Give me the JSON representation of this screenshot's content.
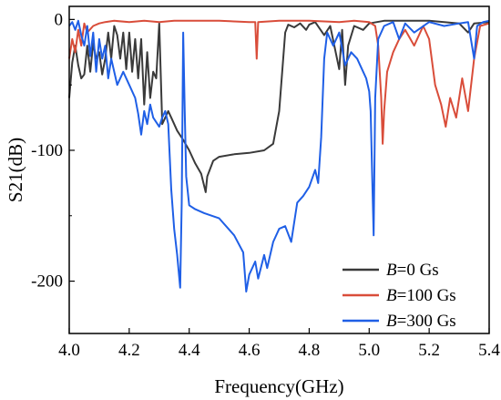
{
  "chart_data": {
    "type": "line",
    "xlabel": "Frequency(GHz)",
    "ylabel": "S21(dB)",
    "xlim": [
      4.0,
      5.4
    ],
    "ylim": [
      -240,
      10
    ],
    "x_ticks": [
      "4.0",
      "4.2",
      "4.4",
      "4.6",
      "4.8",
      "5.0",
      "5.2",
      "5.4"
    ],
    "y_ticks": [
      "0",
      "-100",
      "-200"
    ],
    "legend_position": "bottom-right",
    "series": [
      {
        "name": "B=0 Gs",
        "legend_var": "B",
        "legend_rest": "=0 Gs",
        "color": "#3a3a3a",
        "points": [
          [
            4.0,
            -60
          ],
          [
            4.01,
            -33
          ],
          [
            4.02,
            -20
          ],
          [
            4.03,
            -35
          ],
          [
            4.04,
            -45
          ],
          [
            4.05,
            -42
          ],
          [
            4.06,
            -20
          ],
          [
            4.07,
            -40
          ],
          [
            4.08,
            -18
          ],
          [
            4.09,
            -30
          ],
          [
            4.1,
            -25
          ],
          [
            4.11,
            -42
          ],
          [
            4.12,
            -30
          ],
          [
            4.13,
            -10
          ],
          [
            4.14,
            -30
          ],
          [
            4.15,
            -5
          ],
          [
            4.16,
            -12
          ],
          [
            4.17,
            -30
          ],
          [
            4.18,
            -10
          ],
          [
            4.19,
            -38
          ],
          [
            4.2,
            -10
          ],
          [
            4.21,
            -40
          ],
          [
            4.22,
            -15
          ],
          [
            4.23,
            -45
          ],
          [
            4.24,
            -15
          ],
          [
            4.25,
            -65
          ],
          [
            4.26,
            -25
          ],
          [
            4.27,
            -60
          ],
          [
            4.28,
            -40
          ],
          [
            4.29,
            -45
          ],
          [
            4.3,
            -3
          ],
          [
            4.31,
            -80
          ],
          [
            4.32,
            -75
          ],
          [
            4.33,
            -70
          ],
          [
            4.34,
            -75
          ],
          [
            4.36,
            -85
          ],
          [
            4.38,
            -92
          ],
          [
            4.4,
            -100
          ],
          [
            4.42,
            -110
          ],
          [
            4.44,
            -118
          ],
          [
            4.455,
            -132
          ],
          [
            4.46,
            -120
          ],
          [
            4.48,
            -108
          ],
          [
            4.5,
            -105
          ],
          [
            4.55,
            -103
          ],
          [
            4.6,
            -102
          ],
          [
            4.65,
            -100
          ],
          [
            4.68,
            -95
          ],
          [
            4.7,
            -70
          ],
          [
            4.72,
            -10
          ],
          [
            4.73,
            -4
          ],
          [
            4.75,
            -6
          ],
          [
            4.77,
            -3
          ],
          [
            4.79,
            -8
          ],
          [
            4.8,
            -4
          ],
          [
            4.82,
            -2
          ],
          [
            4.85,
            -12
          ],
          [
            4.87,
            -5
          ],
          [
            4.9,
            -38
          ],
          [
            4.91,
            -8
          ],
          [
            4.92,
            -50
          ],
          [
            4.93,
            -20
          ],
          [
            4.95,
            -5
          ],
          [
            4.98,
            -8
          ],
          [
            5.0,
            -3
          ],
          [
            5.05,
            -1
          ],
          [
            5.1,
            -1
          ],
          [
            5.15,
            -1
          ],
          [
            5.2,
            -1
          ],
          [
            5.25,
            -2
          ],
          [
            5.3,
            -3
          ],
          [
            5.33,
            -10
          ],
          [
            5.35,
            -3
          ],
          [
            5.4,
            -2
          ]
        ]
      },
      {
        "name": "B=100 Gs",
        "legend_var": "B",
        "legend_rest": "=100 Gs",
        "color": "#d94d3a",
        "points": [
          [
            4.0,
            -30
          ],
          [
            4.01,
            -15
          ],
          [
            4.02,
            -25
          ],
          [
            4.03,
            -8
          ],
          [
            4.04,
            -20
          ],
          [
            4.05,
            -3
          ],
          [
            4.06,
            -10
          ],
          [
            4.08,
            -5
          ],
          [
            4.1,
            -3
          ],
          [
            4.12,
            -2
          ],
          [
            4.15,
            -1
          ],
          [
            4.2,
            -2
          ],
          [
            4.25,
            -1
          ],
          [
            4.3,
            -2
          ],
          [
            4.35,
            -1
          ],
          [
            4.4,
            -1
          ],
          [
            4.5,
            -1
          ],
          [
            4.6,
            -2
          ],
          [
            4.62,
            -2
          ],
          [
            4.625,
            -30
          ],
          [
            4.63,
            -2
          ],
          [
            4.7,
            -1
          ],
          [
            4.8,
            -1
          ],
          [
            4.9,
            -2
          ],
          [
            4.95,
            -1
          ],
          [
            5.0,
            -2
          ],
          [
            5.02,
            -5
          ],
          [
            5.03,
            -20
          ],
          [
            5.04,
            -60
          ],
          [
            5.045,
            -95
          ],
          [
            5.05,
            -70
          ],
          [
            5.06,
            -40
          ],
          [
            5.08,
            -25
          ],
          [
            5.1,
            -15
          ],
          [
            5.12,
            -8
          ],
          [
            5.15,
            -20
          ],
          [
            5.18,
            -5
          ],
          [
            5.2,
            -15
          ],
          [
            5.22,
            -50
          ],
          [
            5.24,
            -65
          ],
          [
            5.255,
            -82
          ],
          [
            5.27,
            -60
          ],
          [
            5.29,
            -75
          ],
          [
            5.31,
            -45
          ],
          [
            5.33,
            -70
          ],
          [
            5.35,
            -30
          ],
          [
            5.37,
            -5
          ],
          [
            5.4,
            -3
          ]
        ]
      },
      {
        "name": "B=300 Gs",
        "legend_var": "B",
        "legend_rest": "=300 Gs",
        "color": "#1f5fe6",
        "points": [
          [
            4.0,
            -5
          ],
          [
            4.01,
            -2
          ],
          [
            4.02,
            -8
          ],
          [
            4.03,
            -1
          ],
          [
            4.04,
            -12
          ],
          [
            4.05,
            -20
          ],
          [
            4.06,
            -5
          ],
          [
            4.07,
            -28
          ],
          [
            4.08,
            -10
          ],
          [
            4.09,
            -40
          ],
          [
            4.1,
            -15
          ],
          [
            4.11,
            -30
          ],
          [
            4.12,
            -20
          ],
          [
            4.13,
            -45
          ],
          [
            4.14,
            -30
          ],
          [
            4.16,
            -50
          ],
          [
            4.18,
            -40
          ],
          [
            4.2,
            -50
          ],
          [
            4.22,
            -60
          ],
          [
            4.23,
            -72
          ],
          [
            4.24,
            -88
          ],
          [
            4.25,
            -70
          ],
          [
            4.26,
            -80
          ],
          [
            4.27,
            -65
          ],
          [
            4.28,
            -75
          ],
          [
            4.3,
            -82
          ],
          [
            4.31,
            -75
          ],
          [
            4.32,
            -70
          ],
          [
            4.33,
            -80
          ],
          [
            4.34,
            -130
          ],
          [
            4.35,
            -160
          ],
          [
            4.36,
            -180
          ],
          [
            4.37,
            -205
          ],
          [
            4.375,
            -140
          ],
          [
            4.38,
            -10
          ],
          [
            4.385,
            -70
          ],
          [
            4.39,
            -120
          ],
          [
            4.4,
            -142
          ],
          [
            4.42,
            -145
          ],
          [
            4.45,
            -148
          ],
          [
            4.5,
            -152
          ],
          [
            4.55,
            -165
          ],
          [
            4.58,
            -178
          ],
          [
            4.59,
            -208
          ],
          [
            4.6,
            -195
          ],
          [
            4.62,
            -185
          ],
          [
            4.63,
            -198
          ],
          [
            4.65,
            -180
          ],
          [
            4.66,
            -190
          ],
          [
            4.68,
            -170
          ],
          [
            4.7,
            -160
          ],
          [
            4.72,
            -158
          ],
          [
            4.74,
            -170
          ],
          [
            4.76,
            -140
          ],
          [
            4.78,
            -135
          ],
          [
            4.8,
            -128
          ],
          [
            4.82,
            -115
          ],
          [
            4.83,
            -125
          ],
          [
            4.84,
            -90
          ],
          [
            4.85,
            -30
          ],
          [
            4.86,
            -10
          ],
          [
            4.88,
            -20
          ],
          [
            4.9,
            -10
          ],
          [
            4.92,
            -35
          ],
          [
            4.94,
            -25
          ],
          [
            4.96,
            -30
          ],
          [
            4.98,
            -40
          ],
          [
            4.99,
            -45
          ],
          [
            5.0,
            -55
          ],
          [
            5.005,
            -70
          ],
          [
            5.01,
            -120
          ],
          [
            5.015,
            -165
          ],
          [
            5.02,
            -60
          ],
          [
            5.03,
            -15
          ],
          [
            5.05,
            -5
          ],
          [
            5.08,
            -2
          ],
          [
            5.1,
            -15
          ],
          [
            5.12,
            -3
          ],
          [
            5.15,
            -10
          ],
          [
            5.2,
            -2
          ],
          [
            5.25,
            -5
          ],
          [
            5.3,
            -3
          ],
          [
            5.33,
            -2
          ],
          [
            5.35,
            -30
          ],
          [
            5.36,
            -5
          ],
          [
            5.38,
            -2
          ],
          [
            5.4,
            -1
          ]
        ]
      }
    ]
  }
}
